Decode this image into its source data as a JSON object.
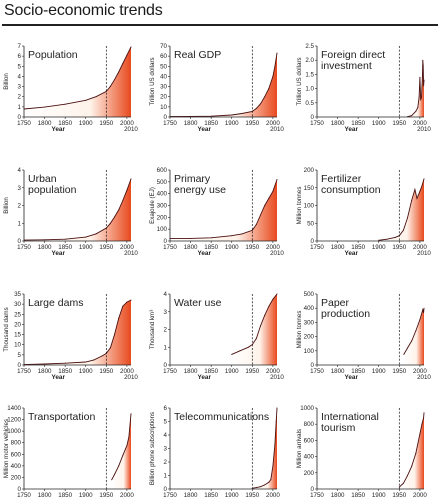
{
  "page": {
    "title": "Socio-economic trends"
  },
  "chart_data": [
    {
      "type": "area",
      "title": [
        "Population"
      ],
      "ylabel": "Billion",
      "xlabel": "Year",
      "xticks": [
        "1750",
        "1800",
        "1850",
        "1900",
        "1950",
        "2000"
      ],
      "xtick_extra": "2010",
      "yticks": [
        "0",
        "1",
        "2",
        "3",
        "4",
        "5",
        "6",
        "7"
      ],
      "ylim": [
        0,
        7
      ],
      "xlim": [
        1750,
        2010
      ],
      "marker_year": 1950,
      "x": [
        1750,
        1800,
        1850,
        1900,
        1925,
        1950,
        1960,
        1970,
        1980,
        1990,
        2000,
        2010
      ],
      "y": [
        0.79,
        0.98,
        1.26,
        1.65,
        2.0,
        2.52,
        3.02,
        3.68,
        4.44,
        5.27,
        6.09,
        6.9
      ]
    },
    {
      "type": "area",
      "title": [
        "Real GDP"
      ],
      "ylabel": "Trillion US dollars",
      "xlabel": "Year",
      "xticks": [
        "1750",
        "1800",
        "1850",
        "1900",
        "1950",
        "2000"
      ],
      "xtick_extra": "2010",
      "yticks": [
        "0",
        "10",
        "20",
        "30",
        "40",
        "50",
        "60",
        "70"
      ],
      "ylim": [
        0,
        70
      ],
      "xlim": [
        1750,
        2010
      ],
      "marker_year": 1950,
      "x": [
        1750,
        1800,
        1850,
        1900,
        1925,
        1950,
        1960,
        1970,
        1980,
        1990,
        2000,
        2005,
        2010
      ],
      "y": [
        0.4,
        0.6,
        0.8,
        2.0,
        3.5,
        5.5,
        8.5,
        13,
        20,
        28,
        40,
        50,
        63
      ]
    },
    {
      "type": "area",
      "title": [
        "Foreign direct",
        "investment"
      ],
      "ylabel": "Trillion US dollars",
      "xlabel": "Year",
      "xticks": [
        "1750",
        "1800",
        "1850",
        "1900",
        "1950",
        "2000"
      ],
      "xtick_extra": "2010",
      "yticks": [
        "0",
        "0.5",
        "1.0",
        "1.5",
        "2.0",
        "2.5"
      ],
      "ylim": [
        0,
        2.5
      ],
      "xlim": [
        1750,
        2010
      ],
      "marker_year": 1950,
      "x": [
        1970,
        1980,
        1990,
        1995,
        1998,
        2000,
        2002,
        2004,
        2006,
        2007,
        2008,
        2009,
        2010
      ],
      "y": [
        0.01,
        0.05,
        0.2,
        0.33,
        0.7,
        1.4,
        0.6,
        0.7,
        1.4,
        2.0,
        1.8,
        1.1,
        1.3
      ]
    },
    {
      "type": "area",
      "title": [
        "Urban",
        "population"
      ],
      "ylabel": "Billion",
      "xlabel": "Year",
      "xticks": [
        "1750",
        "1800",
        "1850",
        "1900",
        "1950",
        "2000"
      ],
      "xtick_extra": "2010",
      "yticks": [
        "0",
        "1",
        "2",
        "3",
        "4"
      ],
      "ylim": [
        0,
        4
      ],
      "xlim": [
        1750,
        2010
      ],
      "marker_year": 1950,
      "x": [
        1750,
        1800,
        1850,
        1900,
        1925,
        1950,
        1960,
        1970,
        1980,
        1990,
        2000,
        2010
      ],
      "y": [
        0.05,
        0.07,
        0.1,
        0.22,
        0.4,
        0.73,
        1.0,
        1.35,
        1.75,
        2.28,
        2.86,
        3.5
      ]
    },
    {
      "type": "area",
      "title": [
        "Primary",
        "energy use"
      ],
      "ylabel": "Exajoule (EJ)",
      "xlabel": "Year",
      "xticks": [
        "1750",
        "1800",
        "1850",
        "1900",
        "1950",
        "2000"
      ],
      "xtick_extra": "2010",
      "yticks": [
        "0",
        "100",
        "200",
        "300",
        "400",
        "500",
        "600"
      ],
      "ylim": [
        0,
        600
      ],
      "xlim": [
        1750,
        2010
      ],
      "marker_year": 1950,
      "x": [
        1750,
        1800,
        1850,
        1900,
        1925,
        1950,
        1960,
        1970,
        1980,
        1990,
        2000,
        2010
      ],
      "y": [
        20,
        22,
        27,
        45,
        60,
        90,
        140,
        220,
        300,
        360,
        420,
        520
      ]
    },
    {
      "type": "area",
      "title": [
        "Fertilizer",
        "consumption"
      ],
      "ylabel": "Million tonnes",
      "xlabel": "Year",
      "xticks": [
        "1750",
        "1800",
        "1850",
        "1900",
        "1950",
        "2000"
      ],
      "xtick_extra": "2010",
      "yticks": [
        "0",
        "50",
        "100",
        "150",
        "200"
      ],
      "ylim": [
        0,
        200
      ],
      "xlim": [
        1750,
        2010
      ],
      "marker_year": 1950,
      "x": [
        1900,
        1920,
        1940,
        1950,
        1960,
        1970,
        1980,
        1988,
        1993,
        2000,
        2005,
        2010
      ],
      "y": [
        2,
        5,
        10,
        15,
        30,
        65,
        115,
        145,
        120,
        140,
        155,
        175
      ]
    },
    {
      "type": "area",
      "title": [
        "Large dams"
      ],
      "ylabel": "Thousand dams",
      "xlabel": "Year",
      "xticks": [
        "1750",
        "1800",
        "1850",
        "1900",
        "1950",
        "2000"
      ],
      "xtick_extra": "2010",
      "yticks": [
        "0",
        "5",
        "10",
        "15",
        "20",
        "25",
        "30",
        "35"
      ],
      "ylim": [
        0,
        35
      ],
      "xlim": [
        1750,
        2010
      ],
      "marker_year": 1950,
      "x": [
        1750,
        1800,
        1850,
        1900,
        1920,
        1940,
        1950,
        1960,
        1970,
        1980,
        1990,
        2000,
        2010
      ],
      "y": [
        0.2,
        0.5,
        0.9,
        1.5,
        2.5,
        4.5,
        5.7,
        8.5,
        15,
        23,
        29,
        31,
        32
      ]
    },
    {
      "type": "area",
      "title": [
        "Water use"
      ],
      "ylabel": "Thousand km³",
      "xlabel": "Year",
      "xticks": [
        "1750",
        "1800",
        "1850",
        "1900",
        "1950",
        "2000"
      ],
      "xtick_extra": "2010",
      "yticks": [
        "0",
        "1",
        "2",
        "3",
        "4"
      ],
      "ylim": [
        0,
        4
      ],
      "xlim": [
        1750,
        2010
      ],
      "marker_year": 1950,
      "x": [
        1900,
        1920,
        1940,
        1950,
        1960,
        1970,
        1980,
        1990,
        2000,
        2010
      ],
      "y": [
        0.6,
        0.8,
        1.0,
        1.15,
        1.5,
        2.2,
        2.8,
        3.3,
        3.7,
        4.0
      ]
    },
    {
      "type": "area",
      "title": [
        "Paper",
        "production"
      ],
      "ylabel": "Million tonnes",
      "xlabel": "Year",
      "xticks": [
        "1750",
        "1800",
        "1850",
        "1900",
        "1950",
        "2000"
      ],
      "xtick_extra": "2010",
      "yticks": [
        "0",
        "100",
        "200",
        "300",
        "400",
        "500"
      ],
      "ylim": [
        0,
        500
      ],
      "xlim": [
        1750,
        2010
      ],
      "marker_year": 1950,
      "x": [
        1961,
        1970,
        1980,
        1990,
        2000,
        2007,
        2009,
        2010
      ],
      "y": [
        75,
        120,
        170,
        240,
        320,
        390,
        370,
        400
      ]
    },
    {
      "type": "area",
      "title": [
        "Transportation"
      ],
      "ylabel": "Million motor vehicles",
      "xlabel": "Year",
      "xticks": [
        "1750",
        "1800",
        "1850",
        "1900",
        "1950",
        "2000"
      ],
      "xtick_extra": "2010",
      "yticks": [
        "0",
        "200",
        "400",
        "600",
        "800",
        "1000",
        "1200",
        "1400"
      ],
      "ylim": [
        0,
        1400
      ],
      "xlim": [
        1750,
        2010
      ],
      "marker_year": 1950,
      "x": [
        1963,
        1970,
        1980,
        1990,
        2000,
        2005,
        2010
      ],
      "y": [
        160,
        250,
        400,
        580,
        750,
        900,
        1300
      ]
    },
    {
      "type": "area",
      "title": [
        "Telecommunications"
      ],
      "ylabel": "Billion phone subscriptions",
      "xlabel": "Year",
      "xticks": [
        "1750",
        "1800",
        "1850",
        "1900",
        "1950",
        "2000"
      ],
      "xtick_extra": "2010",
      "yticks": [
        "0",
        "1",
        "2",
        "3",
        "4",
        "5",
        "6"
      ],
      "ylim": [
        0,
        6
      ],
      "xlim": [
        1750,
        2010
      ],
      "marker_year": 1950,
      "x": [
        1950,
        1960,
        1970,
        1980,
        1990,
        1995,
        2000,
        2005,
        2008,
        2010
      ],
      "y": [
        0.06,
        0.1,
        0.17,
        0.3,
        0.5,
        0.7,
        1.7,
        3.3,
        5.0,
        6.0
      ]
    },
    {
      "type": "area",
      "title": [
        "International",
        "tourism"
      ],
      "ylabel": "Million arrivals",
      "xlabel": "Year",
      "xticks": [
        "1750",
        "1800",
        "1850",
        "1900",
        "1950",
        "2000"
      ],
      "xtick_extra": "2010",
      "yticks": [
        "0",
        "200",
        "400",
        "600",
        "800",
        "1000"
      ],
      "ylim": [
        0,
        1000
      ],
      "xlim": [
        1750,
        2010
      ],
      "marker_year": 1950,
      "x": [
        1950,
        1960,
        1970,
        1980,
        1990,
        2000,
        2005,
        2009,
        2010
      ],
      "y": [
        25,
        70,
        165,
        280,
        440,
        680,
        800,
        880,
        940
      ]
    }
  ],
  "colors": {
    "fill_light": "#fff3ea",
    "fill_dark": "#e8491d",
    "line": "#4a1010",
    "axis": "#222222"
  }
}
